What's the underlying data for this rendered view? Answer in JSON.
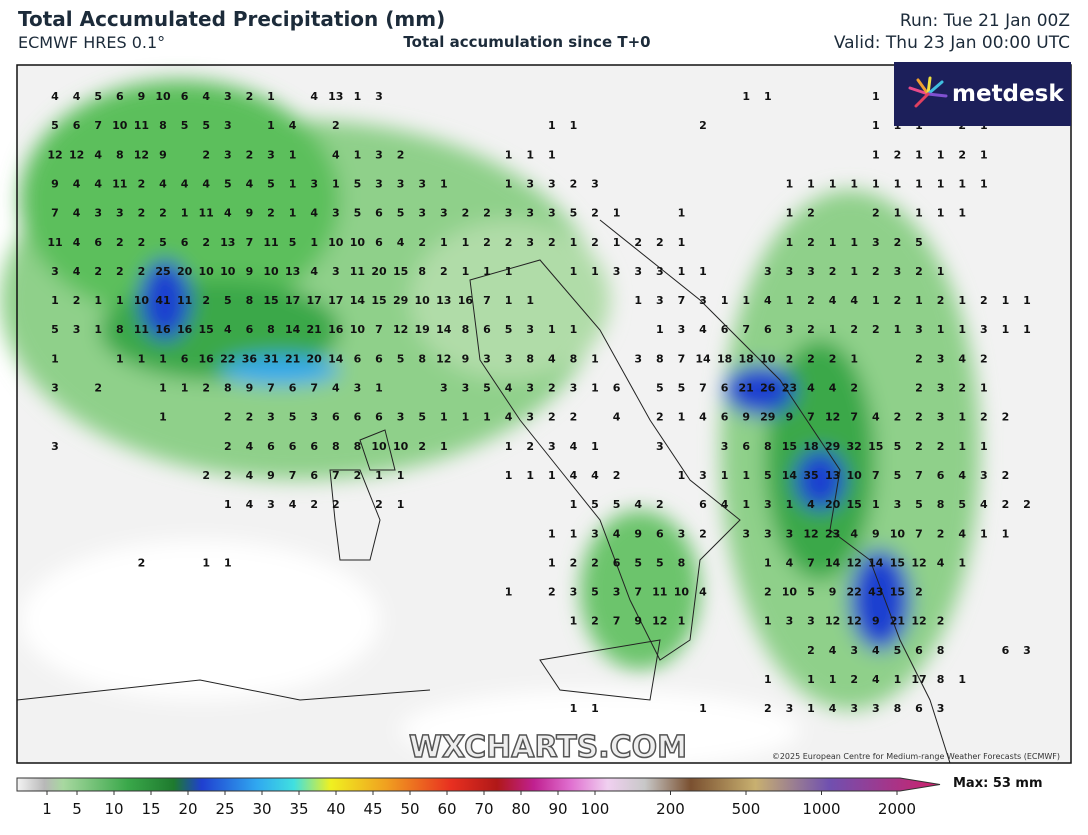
{
  "header": {
    "title": "Total Accumulated Precipitation (mm)",
    "model": "ECMWF HRES 0.1°",
    "subtitle": "Total accumulation since T+0",
    "run": "Run: Tue 21 Jan 00Z",
    "valid": "Valid: Thu 23 Jan 00:00 UTC"
  },
  "logo": "metdesk",
  "watermark": "WXCHARTS.COM",
  "copyright": "©2025 European Centre for Medium-range Weather Forecasts (ECMWF)",
  "max_label": "Max: 53 mm",
  "colorbar": {
    "ticks": [
      1,
      5,
      10,
      15,
      20,
      25,
      30,
      35,
      40,
      45,
      50,
      60,
      70,
      80,
      90,
      100,
      200,
      500,
      1000,
      2000
    ]
  },
  "grid_values": [
    [
      4,
      4,
      5,
      6,
      9,
      10,
      6,
      4,
      3,
      2,
      1,
      null,
      4,
      13,
      1,
      3,
      null,
      null,
      null,
      null,
      null,
      null,
      null,
      null,
      null,
      null,
      null,
      null,
      null,
      null,
      null,
      null,
      1,
      1,
      null,
      null,
      null,
      null,
      1,
      1,
      null,
      null,
      null,
      null,
      null,
      null
    ],
    [
      5,
      6,
      7,
      10,
      11,
      8,
      5,
      5,
      3,
      null,
      1,
      4,
      null,
      2,
      null,
      null,
      null,
      null,
      null,
      null,
      null,
      null,
      null,
      1,
      1,
      null,
      null,
      null,
      null,
      null,
      2,
      null,
      null,
      null,
      null,
      null,
      null,
      null,
      1,
      1,
      1,
      null,
      2,
      1,
      null,
      null
    ],
    [
      12,
      12,
      4,
      8,
      12,
      9,
      null,
      2,
      3,
      2,
      3,
      1,
      null,
      4,
      1,
      3,
      2,
      null,
      null,
      null,
      null,
      1,
      1,
      1,
      null,
      null,
      null,
      null,
      null,
      null,
      null,
      null,
      null,
      null,
      null,
      null,
      null,
      null,
      1,
      2,
      1,
      1,
      2,
      1,
      null,
      null
    ],
    [
      9,
      4,
      4,
      11,
      2,
      4,
      4,
      4,
      5,
      4,
      5,
      1,
      3,
      1,
      5,
      3,
      3,
      3,
      1,
      null,
      null,
      1,
      3,
      3,
      2,
      3,
      null,
      null,
      null,
      null,
      null,
      null,
      null,
      null,
      1,
      1,
      1,
      1,
      1,
      1,
      1,
      1,
      1,
      1,
      null,
      null
    ],
    [
      7,
      4,
      3,
      3,
      2,
      2,
      1,
      11,
      4,
      9,
      2,
      1,
      4,
      3,
      5,
      6,
      5,
      3,
      3,
      2,
      2,
      3,
      3,
      3,
      5,
      2,
      1,
      null,
      null,
      1,
      null,
      null,
      null,
      null,
      1,
      2,
      null,
      null,
      2,
      1,
      1,
      1,
      1,
      null,
      null,
      null
    ],
    [
      11,
      4,
      6,
      2,
      2,
      5,
      6,
      2,
      13,
      7,
      11,
      5,
      1,
      10,
      10,
      6,
      4,
      2,
      1,
      1,
      2,
      2,
      3,
      2,
      1,
      2,
      1,
      2,
      2,
      1,
      null,
      null,
      null,
      null,
      1,
      2,
      1,
      1,
      3,
      2,
      5,
      null,
      null,
      null,
      null,
      null
    ],
    [
      3,
      4,
      2,
      2,
      2,
      25,
      20,
      10,
      10,
      9,
      10,
      13,
      4,
      3,
      11,
      20,
      15,
      8,
      2,
      1,
      1,
      1,
      null,
      null,
      1,
      1,
      3,
      3,
      3,
      1,
      1,
      null,
      null,
      3,
      3,
      3,
      2,
      1,
      2,
      3,
      2,
      1,
      null,
      null,
      null,
      null
    ],
    [
      1,
      2,
      1,
      1,
      10,
      41,
      11,
      2,
      5,
      8,
      15,
      17,
      17,
      17,
      14,
      15,
      29,
      10,
      13,
      16,
      7,
      1,
      1,
      null,
      null,
      null,
      null,
      1,
      3,
      7,
      3,
      1,
      1,
      4,
      1,
      2,
      4,
      4,
      1,
      2,
      1,
      2,
      1,
      2,
      1,
      1
    ],
    [
      5,
      3,
      1,
      8,
      11,
      16,
      16,
      15,
      4,
      6,
      8,
      14,
      21,
      16,
      10,
      7,
      12,
      19,
      14,
      8,
      6,
      5,
      3,
      1,
      1,
      null,
      null,
      null,
      1,
      3,
      4,
      6,
      7,
      6,
      3,
      2,
      1,
      2,
      2,
      1,
      3,
      1,
      1,
      3,
      1,
      1
    ],
    [
      1,
      null,
      null,
      1,
      1,
      1,
      6,
      16,
      22,
      36,
      31,
      21,
      20,
      14,
      6,
      6,
      5,
      8,
      12,
      9,
      3,
      3,
      8,
      4,
      8,
      1,
      null,
      3,
      8,
      7,
      14,
      18,
      18,
      10,
      2,
      2,
      2,
      1,
      null,
      null,
      2,
      3,
      4,
      2,
      null,
      null
    ],
    [
      3,
      null,
      2,
      null,
      null,
      1,
      1,
      2,
      8,
      9,
      7,
      6,
      7,
      4,
      3,
      1,
      null,
      null,
      3,
      3,
      5,
      4,
      3,
      2,
      3,
      1,
      6,
      null,
      5,
      5,
      7,
      6,
      21,
      26,
      23,
      4,
      4,
      2,
      null,
      null,
      2,
      3,
      2,
      1,
      null,
      null
    ],
    [
      null,
      null,
      null,
      null,
      null,
      1,
      null,
      null,
      2,
      2,
      3,
      5,
      3,
      6,
      6,
      6,
      3,
      5,
      1,
      1,
      1,
      4,
      3,
      2,
      2,
      null,
      4,
      null,
      2,
      1,
      4,
      6,
      9,
      29,
      9,
      7,
      12,
      7,
      4,
      2,
      2,
      3,
      1,
      2,
      2,
      null
    ],
    [
      3,
      null,
      null,
      null,
      null,
      null,
      null,
      null,
      2,
      4,
      6,
      6,
      6,
      8,
      8,
      10,
      10,
      2,
      1,
      null,
      null,
      1,
      2,
      3,
      4,
      1,
      null,
      null,
      3,
      null,
      null,
      3,
      6,
      8,
      15,
      18,
      29,
      32,
      15,
      5,
      2,
      2,
      1,
      1,
      null,
      null
    ],
    [
      null,
      null,
      null,
      null,
      null,
      null,
      null,
      2,
      2,
      4,
      9,
      7,
      6,
      7,
      2,
      1,
      1,
      null,
      null,
      null,
      null,
      1,
      1,
      1,
      4,
      4,
      2,
      null,
      null,
      1,
      3,
      1,
      1,
      5,
      14,
      35,
      13,
      10,
      7,
      5,
      7,
      6,
      4,
      3,
      2,
      null
    ],
    [
      null,
      null,
      null,
      null,
      null,
      null,
      null,
      null,
      1,
      4,
      3,
      4,
      2,
      2,
      null,
      2,
      1,
      null,
      null,
      null,
      null,
      null,
      null,
      null,
      1,
      5,
      5,
      4,
      2,
      null,
      6,
      4,
      1,
      3,
      1,
      4,
      20,
      15,
      1,
      3,
      5,
      8,
      5,
      4,
      2,
      2
    ],
    [
      null,
      null,
      null,
      null,
      null,
      null,
      null,
      null,
      null,
      null,
      null,
      null,
      null,
      null,
      null,
      null,
      null,
      null,
      null,
      null,
      null,
      null,
      null,
      1,
      1,
      3,
      4,
      9,
      6,
      3,
      2,
      null,
      3,
      3,
      3,
      12,
      23,
      4,
      9,
      10,
      7,
      2,
      4,
      1,
      1,
      null
    ],
    [
      null,
      null,
      null,
      null,
      2,
      null,
      null,
      1,
      1,
      null,
      null,
      null,
      null,
      null,
      null,
      null,
      null,
      null,
      null,
      null,
      null,
      null,
      null,
      1,
      2,
      2,
      6,
      5,
      5,
      8,
      null,
      null,
      null,
      1,
      4,
      7,
      14,
      12,
      14,
      15,
      12,
      4,
      1,
      null,
      null,
      null
    ],
    [
      null,
      null,
      null,
      null,
      null,
      null,
      null,
      null,
      null,
      null,
      null,
      null,
      null,
      null,
      null,
      null,
      null,
      null,
      null,
      null,
      null,
      1,
      null,
      2,
      3,
      5,
      3,
      7,
      11,
      10,
      4,
      null,
      null,
      2,
      10,
      5,
      9,
      22,
      43,
      15,
      2,
      null,
      null,
      null,
      null,
      null
    ],
    [
      null,
      null,
      null,
      null,
      null,
      null,
      null,
      null,
      null,
      null,
      null,
      null,
      null,
      null,
      null,
      null,
      null,
      null,
      null,
      null,
      null,
      null,
      null,
      null,
      1,
      2,
      7,
      9,
      12,
      1,
      null,
      null,
      null,
      1,
      3,
      3,
      12,
      12,
      9,
      21,
      12,
      2,
      null,
      null,
      null,
      null
    ],
    [
      null,
      null,
      null,
      null,
      null,
      null,
      null,
      null,
      null,
      null,
      null,
      null,
      null,
      null,
      null,
      null,
      null,
      null,
      null,
      null,
      null,
      null,
      null,
      null,
      null,
      null,
      null,
      null,
      null,
      null,
      null,
      null,
      null,
      null,
      null,
      2,
      4,
      3,
      4,
      5,
      6,
      8,
      null,
      null,
      6,
      3
    ],
    [
      null,
      null,
      null,
      null,
      null,
      null,
      null,
      null,
      null,
      null,
      null,
      null,
      null,
      null,
      null,
      null,
      null,
      null,
      null,
      null,
      null,
      null,
      null,
      null,
      null,
      null,
      null,
      null,
      null,
      null,
      null,
      null,
      null,
      1,
      null,
      1,
      1,
      2,
      4,
      1,
      17,
      8,
      1,
      null,
      null,
      null
    ],
    [
      null,
      null,
      null,
      null,
      null,
      null,
      null,
      null,
      null,
      null,
      null,
      null,
      null,
      null,
      null,
      null,
      null,
      null,
      null,
      null,
      null,
      null,
      null,
      null,
      1,
      1,
      null,
      null,
      null,
      null,
      1,
      null,
      null,
      2,
      3,
      1,
      4,
      3,
      3,
      8,
      6,
      3,
      null,
      null,
      null,
      null
    ]
  ]
}
